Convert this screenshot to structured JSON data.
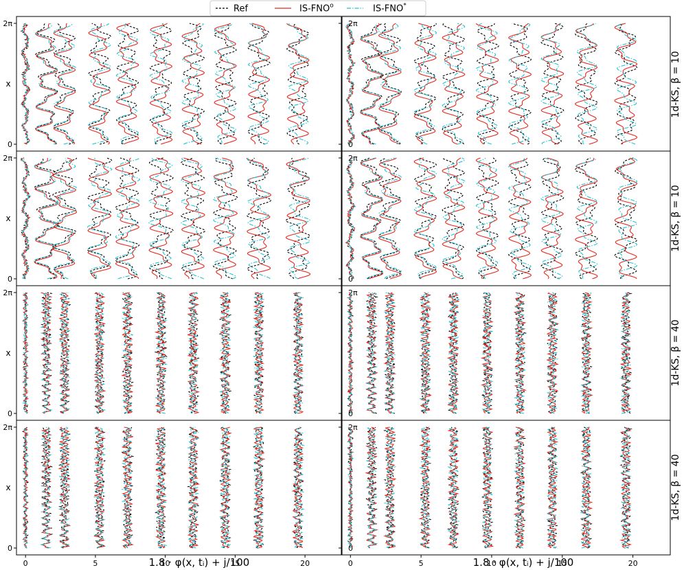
{
  "legend": {
    "placement": "top-center",
    "entries": [
      {
        "label": "Ref",
        "color": "#000000",
        "dash": "dashed"
      },
      {
        "label": "IS-FNO",
        "sup": "o",
        "color": "#e8281e",
        "dash": "solid"
      },
      {
        "label": "IS-FNO",
        "sup": "*",
        "color": "#22c3d0",
        "dash": "dashdot"
      }
    ]
  },
  "axes_text": {
    "ylabel": "x",
    "ytick_labels": [
      "0",
      "2π"
    ],
    "xtick_labels": [
      "0",
      "5",
      "10",
      "15",
      "20"
    ],
    "xlabel": "1.8 · φ(x, tᵢ) + j/100"
  },
  "row_labels": [
    "1d-KS, β = 10",
    "1d-KS, β = 10",
    "1d-KS, β = 40",
    "1d-KS, β = 40"
  ],
  "chart_data": {
    "type": "line",
    "layout": "4 rows × 2 columns of panels",
    "x_axis": {
      "label": "1.8 · φ(x, tᵢ) + j/100",
      "ticks": [
        0,
        5,
        10,
        15,
        20
      ],
      "range": [
        -0.5,
        22.5
      ]
    },
    "y_axis": {
      "label": "x",
      "ticks": [
        0,
        6.2832
      ],
      "tick_labels": [
        "0",
        "2π"
      ],
      "range": [
        0,
        6.2832
      ]
    },
    "grid": false,
    "series": [
      {
        "name": "Ref",
        "color": "#000000"
      },
      {
        "name": "IS-FNO^o",
        "color": "#e8281e"
      },
      {
        "name": "IS-FNO^*",
        "color": "#22c3d0"
      }
    ],
    "profile_offsets": [
      0,
      1.5,
      2.8,
      5.3,
      7.3,
      9.7,
      12.0,
      14.3,
      16.7,
      19.5
    ],
    "panels": [
      {
        "row": 1,
        "col": 1,
        "beta": 10,
        "freq": 5,
        "amp": 0.55
      },
      {
        "row": 1,
        "col": 2,
        "beta": 10,
        "freq": 5,
        "amp": 0.55
      },
      {
        "row": 2,
        "col": 1,
        "beta": 10,
        "freq": 5,
        "amp": 0.6
      },
      {
        "row": 2,
        "col": 2,
        "beta": 10,
        "freq": 5,
        "amp": 0.55
      },
      {
        "row": 3,
        "col": 1,
        "beta": 40,
        "freq": 18,
        "amp": 0.22
      },
      {
        "row": 3,
        "col": 2,
        "beta": 40,
        "freq": 18,
        "amp": 0.22
      },
      {
        "row": 4,
        "col": 1,
        "beta": 40,
        "freq": 18,
        "amp": 0.22
      },
      {
        "row": 4,
        "col": 2,
        "beta": 40,
        "freq": 18,
        "amp": 0.22
      }
    ]
  }
}
